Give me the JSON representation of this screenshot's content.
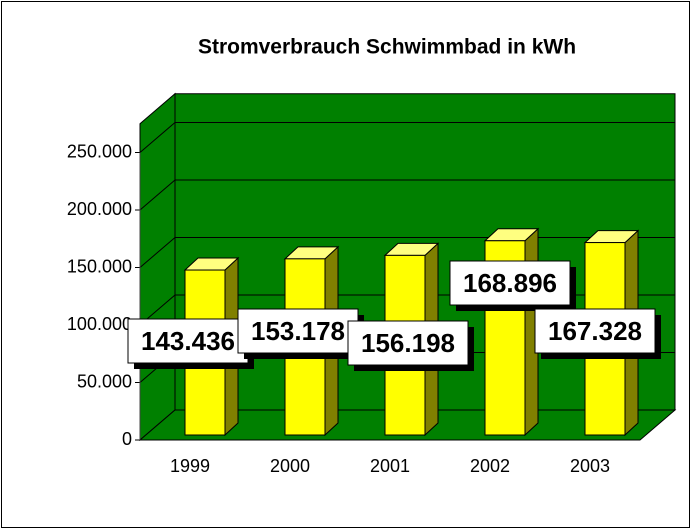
{
  "chart_data": {
    "type": "bar3d",
    "title": "Stromverbrauch Schwimmbad in kWh",
    "categories": [
      "1999",
      "2000",
      "2001",
      "2002",
      "2003"
    ],
    "values": [
      143436,
      153178,
      156198,
      168896,
      167328
    ],
    "value_labels": [
      "143.436",
      "153.178",
      "156.198",
      "168.896",
      "167.328"
    ],
    "color": "#ffff00",
    "wall_color": "#008000",
    "ylim": [
      0,
      275000
    ],
    "yticks": [
      0,
      {
        "value": 50000,
        "label": "50.000"
      },
      {
        "value": 100000,
        "label": "100.000"
      },
      {
        "value": 150000,
        "label": "150.000"
      },
      {
        "value": 200000,
        "label": "200.000"
      },
      {
        "value": 250000,
        "label": "250.000"
      }
    ],
    "grid": true
  }
}
